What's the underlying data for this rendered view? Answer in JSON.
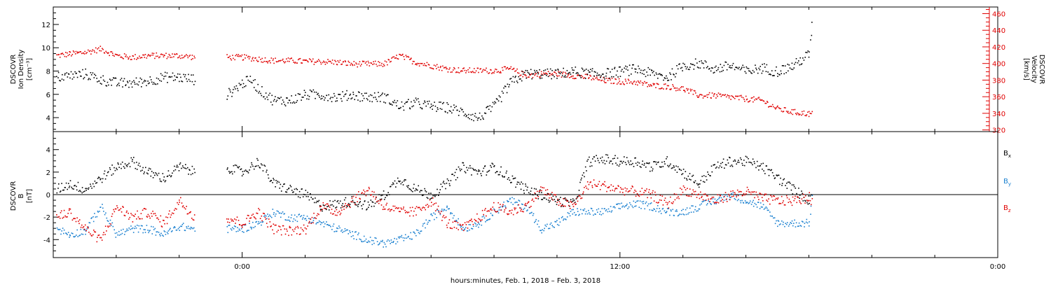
{
  "xlabel": "hours:minutes, Feb.  1, 2018 – Feb.  3, 2018",
  "colors": {
    "black": "#000000",
    "red": "#e00000",
    "blue": "#1a80d0"
  },
  "chart_data": [
    {
      "type": "scatter",
      "panel": "top",
      "left_axis": {
        "label_lines": [
          "DSCOVR",
          "Ion Density",
          "[cm⁻³]"
        ],
        "ticks": [
          "4",
          "6",
          "8",
          "10",
          "12"
        ],
        "ylim": [
          2.8,
          13.5
        ]
      },
      "right_axis": {
        "label_lines": [
          "DSCOVR",
          "Velocity",
          "[km/s]"
        ],
        "ticks": [
          "320",
          "340",
          "360",
          "380",
          "400",
          "420",
          "440",
          "460"
        ],
        "ylim": [
          318,
          468
        ]
      },
      "x_ticks": [
        "0:00",
        "12:00",
        "0:00"
      ],
      "xlim_hours": [
        -6,
        24
      ],
      "series": [
        {
          "color": "black",
          "axis": "left",
          "x": [
            -5.9,
            -5.0,
            -4.5,
            -4.0,
            -3.5,
            -3.0,
            -2.5,
            -2.0,
            -1.5,
            -1.4,
            -1.0,
            -0.5,
            0.0,
            0.3,
            0.5,
            1.0,
            1.5,
            2.0,
            2.5,
            3.0,
            3.5,
            4.0,
            4.5,
            5.0,
            5.5,
            6.0,
            6.5,
            7.0,
            7.5,
            8.0,
            8.5,
            9.0,
            9.5,
            10.0,
            10.5,
            11.0,
            11.5,
            12.0,
            12.5,
            13.0,
            13.5,
            14.0,
            14.5,
            15.0,
            15.5,
            16.0,
            16.5,
            17.0,
            17.5,
            18.0,
            18.1
          ],
          "y": [
            7.5,
            7.8,
            7.3,
            7.0,
            7.0,
            7.2,
            7.5,
            7.5,
            7.3,
            null,
            null,
            6.0,
            7.0,
            7.3,
            6.5,
            5.5,
            5.5,
            6.0,
            6.0,
            5.8,
            6.0,
            5.8,
            5.8,
            5.0,
            5.3,
            5.0,
            4.9,
            4.5,
            4.0,
            5.0,
            7.0,
            7.8,
            7.8,
            7.8,
            8.0,
            7.8,
            7.8,
            8.0,
            8.2,
            7.8,
            7.5,
            8.5,
            8.7,
            8.2,
            8.5,
            8.0,
            8.3,
            8.0,
            8.5,
            9.5,
            12.5
          ]
        },
        {
          "color": "red",
          "axis": "right",
          "x": [
            -5.9,
            -5.5,
            -5.0,
            -4.5,
            -4.0,
            -3.5,
            -3.0,
            -2.5,
            -2.0,
            -1.5,
            -1.4,
            -1.0,
            -0.5,
            0.0,
            0.5,
            1.0,
            1.5,
            2.0,
            2.5,
            3.0,
            3.5,
            4.0,
            4.5,
            5.0,
            5.5,
            6.0,
            6.5,
            7.0,
            7.5,
            8.0,
            8.5,
            9.0,
            9.5,
            10.0,
            10.5,
            11.0,
            11.5,
            12.0,
            12.5,
            13.0,
            13.5,
            14.0,
            14.5,
            15.0,
            15.5,
            16.0,
            16.5,
            17.0,
            17.5,
            18.0,
            18.1
          ],
          "y": [
            410,
            412,
            414,
            418,
            410,
            408,
            410,
            410,
            410,
            408,
            null,
            null,
            408,
            408,
            406,
            404,
            404,
            403,
            403,
            402,
            400,
            400,
            400,
            410,
            402,
            398,
            394,
            392,
            392,
            392,
            394,
            386,
            388,
            388,
            386,
            384,
            380,
            379,
            378,
            374,
            373,
            370,
            362,
            362,
            360,
            358,
            356,
            346,
            342,
            340,
            340
          ]
        }
      ]
    },
    {
      "type": "scatter",
      "panel": "bottom",
      "left_axis": {
        "label_lines": [
          "DSCOVR",
          "B",
          "[nT]"
        ],
        "ticks": [
          "-4",
          "-2",
          "0",
          "2",
          "4"
        ],
        "ylim": [
          -5.6,
          5.6
        ]
      },
      "x_ticks": [
        "0:00",
        "12:00",
        "0:00"
      ],
      "xlim_hours": [
        -6,
        24
      ],
      "legend_position": "right",
      "series": [
        {
          "name": "Bx",
          "name_main": "B",
          "name_sub": "x",
          "color": "black",
          "x": [
            -5.9,
            -5.5,
            -5.0,
            -4.5,
            -4.0,
            -3.5,
            -3.0,
            -2.5,
            -2.0,
            -1.5,
            -1.4,
            -1.0,
            -0.5,
            0.0,
            0.5,
            1.0,
            1.5,
            2.0,
            2.5,
            3.0,
            3.5,
            4.0,
            4.5,
            5.0,
            5.5,
            6.0,
            6.5,
            7.0,
            7.5,
            8.0,
            8.5,
            9.0,
            9.5,
            10.0,
            10.5,
            11.0,
            11.5,
            12.0,
            12.5,
            13.0,
            13.5,
            14.0,
            14.5,
            15.0,
            15.5,
            16.0,
            16.5,
            17.0,
            17.5,
            18.0,
            18.1
          ],
          "y": [
            0.5,
            1.0,
            0.5,
            1.5,
            2.5,
            3.0,
            2.0,
            1.5,
            2.5,
            2.0,
            null,
            null,
            2.5,
            2.0,
            3.0,
            1.0,
            0.5,
            0.0,
            -1.0,
            -0.8,
            -0.5,
            -1.0,
            0.0,
            1.5,
            0.5,
            0.0,
            1.0,
            2.5,
            2.0,
            2.5,
            1.5,
            0.5,
            0.0,
            -0.5,
            -0.8,
            3.0,
            3.2,
            3.0,
            3.0,
            2.5,
            3.0,
            2.0,
            1.0,
            2.5,
            3.0,
            3.0,
            2.5,
            1.5,
            0.5,
            -0.5,
            0.5
          ]
        },
        {
          "name": "By",
          "name_main": "B",
          "name_sub": "y",
          "color": "blue",
          "x": [
            -5.9,
            -5.5,
            -5.0,
            -4.5,
            -4.0,
            -3.5,
            -3.0,
            -2.5,
            -2.0,
            -1.5,
            -1.4,
            -1.0,
            -0.5,
            0.0,
            0.5,
            1.0,
            1.5,
            2.0,
            2.5,
            3.0,
            3.5,
            4.0,
            4.5,
            5.0,
            5.5,
            6.0,
            6.5,
            7.0,
            7.5,
            8.0,
            8.5,
            9.0,
            9.5,
            10.0,
            10.5,
            11.0,
            11.5,
            12.0,
            12.5,
            13.0,
            13.5,
            14.0,
            14.5,
            15.0,
            15.5,
            16.0,
            16.5,
            17.0,
            17.5,
            18.0,
            18.1
          ],
          "y": [
            -3.0,
            -3.5,
            -3.2,
            -1.0,
            -3.5,
            -3.0,
            -3.0,
            -3.5,
            -2.8,
            -3.0,
            null,
            null,
            -3.0,
            -3.0,
            -2.5,
            -1.5,
            -2.0,
            -2.0,
            -2.5,
            -3.0,
            -3.5,
            -4.0,
            -4.3,
            -4.0,
            -3.5,
            -2.0,
            -1.0,
            -3.0,
            -2.5,
            -1.5,
            -0.5,
            -1.0,
            -3.0,
            -2.5,
            -1.5,
            -1.5,
            -1.5,
            -1.0,
            -0.8,
            -1.0,
            -1.5,
            -1.5,
            -1.0,
            -0.5,
            0.0,
            -0.5,
            -1.0,
            -2.5,
            -2.5,
            -2.5,
            0.5
          ]
        },
        {
          "name": "Bz",
          "name_main": "B",
          "name_sub": "z",
          "color": "red",
          "x": [
            -5.9,
            -5.5,
            -5.0,
            -4.5,
            -4.0,
            -3.5,
            -3.0,
            -2.5,
            -2.0,
            -1.5,
            -1.4,
            -1.0,
            -0.5,
            0.0,
            0.5,
            1.0,
            1.5,
            2.0,
            2.5,
            3.0,
            3.5,
            4.0,
            4.5,
            5.0,
            5.5,
            6.0,
            6.5,
            7.0,
            7.5,
            8.0,
            8.5,
            9.0,
            9.5,
            10.0,
            10.5,
            11.0,
            11.5,
            12.0,
            12.5,
            13.0,
            13.5,
            14.0,
            14.5,
            15.0,
            15.5,
            16.0,
            16.5,
            17.0,
            17.5,
            18.0,
            18.1
          ],
          "y": [
            -2.0,
            -1.5,
            -3.0,
            -4.0,
            -1.0,
            -2.0,
            -1.5,
            -2.5,
            -0.5,
            -2.0,
            null,
            null,
            -2.0,
            -2.5,
            -1.5,
            -3.0,
            -3.2,
            -3.0,
            -1.0,
            -1.5,
            -0.5,
            0.5,
            -1.0,
            -1.5,
            -1.5,
            -0.5,
            -2.5,
            -3.0,
            -2.0,
            -1.0,
            -1.5,
            -1.0,
            0.5,
            -0.5,
            -1.0,
            1.0,
            0.8,
            0.5,
            0.3,
            0.0,
            -0.8,
            0.5,
            0.0,
            -0.5,
            0.0,
            0.3,
            -0.3,
            -0.5,
            -0.5,
            -0.2,
            -0.8
          ]
        }
      ]
    }
  ]
}
